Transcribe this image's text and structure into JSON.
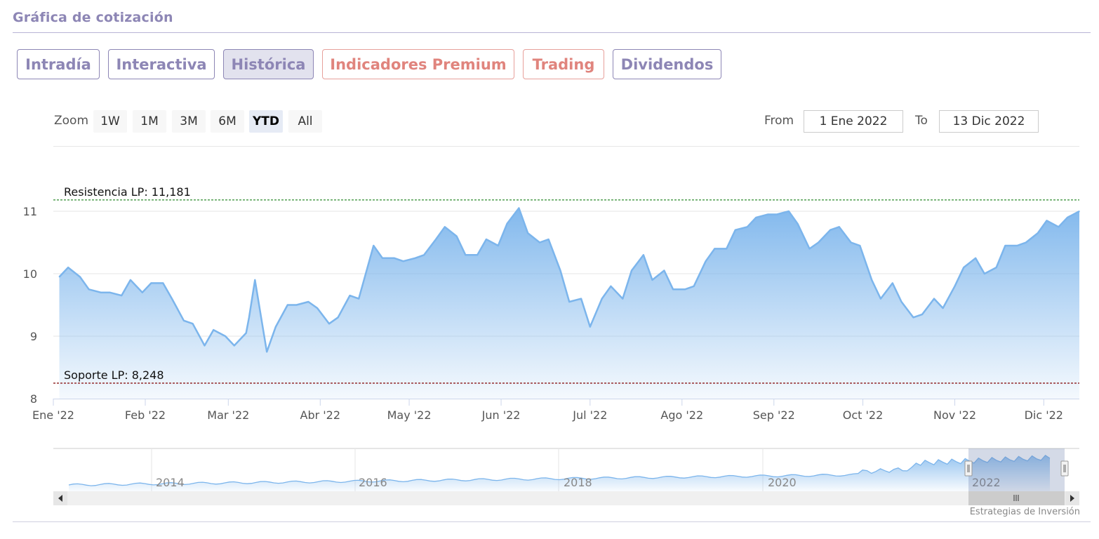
{
  "header": {
    "title": "Gráfica de cotización"
  },
  "tabs": [
    {
      "label": "Intradía",
      "style": "normal"
    },
    {
      "label": "Interactiva",
      "style": "normal"
    },
    {
      "label": "Histórica",
      "style": "active"
    },
    {
      "label": "Indicadores Premium",
      "style": "premium"
    },
    {
      "label": "Trading",
      "style": "premium"
    },
    {
      "label": "Dividendos",
      "style": "normal"
    }
  ],
  "zoom": {
    "label": "Zoom",
    "buttons": [
      "1W",
      "1M",
      "3M",
      "6M",
      "YTD",
      "All"
    ],
    "selected": "YTD"
  },
  "range": {
    "from_label": "From",
    "from_value": "1 Ene 2022",
    "to_label": "To",
    "to_value": "13 Dic 2022"
  },
  "colors": {
    "accent": "#8d86b5",
    "premium": "#e0847d",
    "series": "#7cb5ec",
    "resistance": "#2e8b2e",
    "support": "#8b1a1a"
  },
  "chart_data": {
    "type": "area",
    "y_ticks": [
      "8",
      "9",
      "10",
      "11"
    ],
    "ylim": [
      8,
      11.3
    ],
    "x_ticks": [
      "Ene '22",
      "Feb '22",
      "Mar '22",
      "Abr '22",
      "May '22",
      "Jun '22",
      "Jul '22",
      "Ago '22",
      "Sep '22",
      "Oct '22",
      "Nov '22",
      "Dic '22"
    ],
    "grid": true,
    "reference_lines": [
      {
        "label": "Resistencia LP: 11,181",
        "value": 11.181,
        "style": "dashed",
        "color": "#2e8b2e"
      },
      {
        "label": "Soporte LP: 8,248",
        "value": 8.248,
        "style": "dashed",
        "color": "#8b1a1a"
      }
    ],
    "series": [
      {
        "x": [
          "2022-01-03",
          "2022-01-06",
          "2022-01-10",
          "2022-01-13",
          "2022-01-17",
          "2022-01-20",
          "2022-01-24",
          "2022-01-27",
          "2022-01-31",
          "2022-02-03",
          "2022-02-07",
          "2022-02-10",
          "2022-02-14",
          "2022-02-17",
          "2022-02-21",
          "2022-02-24",
          "2022-02-28",
          "2022-03-03",
          "2022-03-07",
          "2022-03-08",
          "2022-03-10",
          "2022-03-14",
          "2022-03-17",
          "2022-03-21",
          "2022-03-24",
          "2022-03-28",
          "2022-03-31",
          "2022-04-04",
          "2022-04-07",
          "2022-04-11",
          "2022-04-14",
          "2022-04-19",
          "2022-04-22",
          "2022-04-26",
          "2022-04-29",
          "2022-05-03",
          "2022-05-06",
          "2022-05-10",
          "2022-05-13",
          "2022-05-17",
          "2022-05-20",
          "2022-05-24",
          "2022-05-27",
          "2022-05-31",
          "2022-06-03",
          "2022-06-07",
          "2022-06-10",
          "2022-06-14",
          "2022-06-17",
          "2022-06-21",
          "2022-06-24",
          "2022-06-28",
          "2022-07-01",
          "2022-07-05",
          "2022-07-08",
          "2022-07-12",
          "2022-07-15",
          "2022-07-19",
          "2022-07-22",
          "2022-07-26",
          "2022-07-29",
          "2022-08-02",
          "2022-08-05",
          "2022-08-09",
          "2022-08-12",
          "2022-08-16",
          "2022-08-19",
          "2022-08-23",
          "2022-08-26",
          "2022-08-30",
          "2022-09-02",
          "2022-09-06",
          "2022-09-09",
          "2022-09-13",
          "2022-09-16",
          "2022-09-20",
          "2022-09-23",
          "2022-09-27",
          "2022-09-30",
          "2022-10-04",
          "2022-10-07",
          "2022-10-11",
          "2022-10-14",
          "2022-10-18",
          "2022-10-21",
          "2022-10-25",
          "2022-10-28",
          "2022-11-01",
          "2022-11-04",
          "2022-11-08",
          "2022-11-11",
          "2022-11-15",
          "2022-11-18",
          "2022-11-22",
          "2022-11-25",
          "2022-11-29",
          "2022-12-02",
          "2022-12-06",
          "2022-12-09",
          "2022-12-13"
        ],
        "y": [
          9.95,
          10.1,
          9.95,
          9.75,
          9.7,
          9.7,
          9.65,
          9.9,
          9.7,
          9.85,
          9.85,
          9.6,
          9.25,
          9.2,
          8.85,
          9.1,
          9.0,
          8.85,
          9.05,
          9.3,
          9.9,
          8.75,
          9.15,
          9.5,
          9.5,
          9.55,
          9.45,
          9.2,
          9.3,
          9.65,
          9.6,
          10.45,
          10.25,
          10.25,
          10.2,
          10.25,
          10.3,
          10.55,
          10.75,
          10.6,
          10.3,
          10.3,
          10.55,
          10.45,
          10.8,
          11.05,
          10.65,
          10.5,
          10.55,
          10.05,
          9.55,
          9.6,
          9.15,
          9.6,
          9.8,
          9.6,
          10.05,
          10.3,
          9.9,
          10.05,
          9.75,
          9.75,
          9.8,
          10.2,
          10.4,
          10.4,
          10.7,
          10.75,
          10.9,
          10.95,
          10.95,
          11.0,
          10.8,
          10.4,
          10.5,
          10.7,
          10.75,
          10.5,
          10.45,
          9.9,
          9.6,
          9.85,
          9.55,
          9.3,
          9.35,
          9.6,
          9.45,
          9.8,
          10.1,
          10.25,
          10.0,
          10.1,
          10.45,
          10.45,
          10.5,
          10.65,
          10.85,
          10.75,
          10.9,
          11.0
        ]
      }
    ]
  },
  "navigator": {
    "year_labels": [
      "2014",
      "2016",
      "2018",
      "2020",
      "2022"
    ]
  },
  "credit": "Estrategias de Inversión"
}
